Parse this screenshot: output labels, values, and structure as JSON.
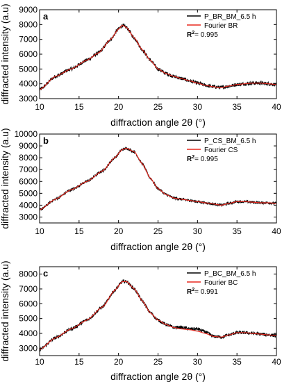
{
  "chart_data": [
    {
      "type": "line",
      "panel": "a",
      "xlabel": "diffraction angle 2θ (°)",
      "ylabel": "diffracted intensity (a.u)",
      "xlim": [
        10,
        40
      ],
      "ylim": [
        3000,
        9000
      ],
      "xticks": [
        10,
        15,
        20,
        25,
        30,
        35,
        40
      ],
      "yticks": [
        3000,
        4000,
        5000,
        6000,
        7000,
        8000,
        9000
      ],
      "legend_position": "top-right",
      "r2_label": "R",
      "r2_value": "= 0.995",
      "series": [
        {
          "name": "P_BR_BM_6.5 h",
          "color": "#000000",
          "noise": 120,
          "x": [
            10,
            12,
            14,
            16,
            17.5,
            19,
            20,
            20.5,
            21,
            22,
            23,
            24,
            25,
            26,
            27,
            28,
            29,
            30,
            31,
            32,
            33,
            34,
            35,
            36,
            37,
            38,
            39,
            40
          ],
          "y": [
            3600,
            4500,
            5000,
            5600,
            6100,
            7000,
            7700,
            7950,
            7800,
            7100,
            6300,
            5600,
            5000,
            4700,
            4500,
            4350,
            4200,
            4050,
            3900,
            3800,
            3750,
            3850,
            3950,
            4000,
            4050,
            4050,
            4000,
            3950
          ]
        },
        {
          "name": "Fourier BR",
          "color": "#e8281e",
          "noise": 0,
          "x": [
            10,
            12,
            14,
            16,
            17.5,
            19,
            20,
            20.5,
            21,
            22,
            23,
            24,
            25,
            26,
            27,
            28,
            29,
            30,
            31,
            32,
            33,
            34,
            35,
            36,
            37,
            38,
            39,
            40
          ],
          "y": [
            3600,
            4500,
            5000,
            5600,
            6100,
            7000,
            7700,
            7950,
            7800,
            7100,
            6300,
            5600,
            5000,
            4700,
            4500,
            4350,
            4200,
            4050,
            3900,
            3800,
            3750,
            3850,
            3950,
            4000,
            4050,
            4050,
            4000,
            3950
          ]
        }
      ]
    },
    {
      "type": "line",
      "panel": "b",
      "xlabel": "diffraction angle 2θ (°)",
      "ylabel": "diffracted intensity (a.u)",
      "xlim": [
        10,
        40
      ],
      "ylim": [
        2500,
        10000
      ],
      "xticks": [
        10,
        15,
        20,
        25,
        30,
        35,
        40
      ],
      "yticks": [
        3000,
        4000,
        5000,
        6000,
        7000,
        8000,
        9000,
        10000
      ],
      "legend_position": "top-right",
      "r2_label": "R",
      "r2_value": "= 0.995",
      "series": [
        {
          "name": "P_CS_BM_6.5 h",
          "color": "#000000",
          "noise": 110,
          "x": [
            10,
            12,
            14,
            16,
            18,
            19.5,
            20.5,
            21,
            22,
            23,
            24,
            25,
            26,
            27,
            28,
            29,
            30,
            31,
            32,
            33,
            34,
            35,
            36,
            37,
            38,
            39,
            40
          ],
          "y": [
            3600,
            4500,
            5300,
            6000,
            6900,
            8000,
            8700,
            8800,
            8500,
            7500,
            6300,
            5400,
            4900,
            4600,
            4500,
            4400,
            4300,
            4200,
            4100,
            4000,
            4150,
            4300,
            4300,
            4250,
            4200,
            4200,
            4150
          ]
        },
        {
          "name": "Fourier CS",
          "color": "#e8281e",
          "noise": 0,
          "x": [
            10,
            12,
            14,
            16,
            18,
            19.5,
            20.5,
            21,
            22,
            23,
            24,
            25,
            26,
            27,
            28,
            29,
            30,
            31,
            32,
            33,
            34,
            35,
            36,
            37,
            38,
            39,
            40
          ],
          "y": [
            3600,
            4500,
            5300,
            6000,
            6900,
            8000,
            8700,
            8800,
            8500,
            7500,
            6300,
            5400,
            4900,
            4600,
            4500,
            4400,
            4300,
            4200,
            4100,
            4000,
            4150,
            4300,
            4300,
            4250,
            4200,
            4200,
            4150
          ]
        }
      ]
    },
    {
      "type": "line",
      "panel": "c",
      "xlabel": "diffraction angle 2θ (°)",
      "ylabel": "diffracted intensity (a.u)",
      "xlim": [
        10,
        40
      ],
      "ylim": [
        2500,
        8500
      ],
      "xticks": [
        10,
        15,
        20,
        25,
        30,
        35,
        40
      ],
      "yticks": [
        3000,
        4000,
        5000,
        6000,
        7000,
        8000
      ],
      "legend_position": "top-right",
      "r2_label": "R",
      "r2_value": "= 0.991",
      "series": [
        {
          "name": "P_BC_BM_6.5 h",
          "color": "#000000",
          "noise": 110,
          "x": [
            10,
            12,
            14,
            16,
            18,
            19.5,
            20.5,
            21,
            22,
            23,
            24,
            25,
            26,
            27,
            28,
            29,
            30,
            31,
            32,
            33,
            34,
            35,
            36,
            37,
            38,
            39,
            40
          ],
          "y": [
            2900,
            3700,
            4300,
            4900,
            5800,
            6900,
            7500,
            7500,
            7000,
            6200,
            5400,
            4900,
            4600,
            4400,
            4400,
            4300,
            4300,
            4100,
            3800,
            3750,
            3900,
            4050,
            4050,
            4000,
            3950,
            3900,
            3850
          ]
        },
        {
          "name": "Fourier BC",
          "color": "#e8281e",
          "noise": 0,
          "x": [
            10,
            12,
            14,
            16,
            18,
            19.5,
            20.5,
            21,
            22,
            23,
            24,
            25,
            26,
            27,
            28,
            29,
            30,
            31,
            32,
            33,
            34,
            35,
            36,
            37,
            38,
            39,
            40
          ],
          "y": [
            2900,
            3700,
            4300,
            4900,
            5800,
            6900,
            7500,
            7500,
            7000,
            6200,
            5400,
            4900,
            4600,
            4400,
            4300,
            4250,
            4150,
            4000,
            3800,
            3750,
            3900,
            4050,
            4050,
            4000,
            3950,
            3900,
            3850
          ]
        }
      ]
    }
  ]
}
